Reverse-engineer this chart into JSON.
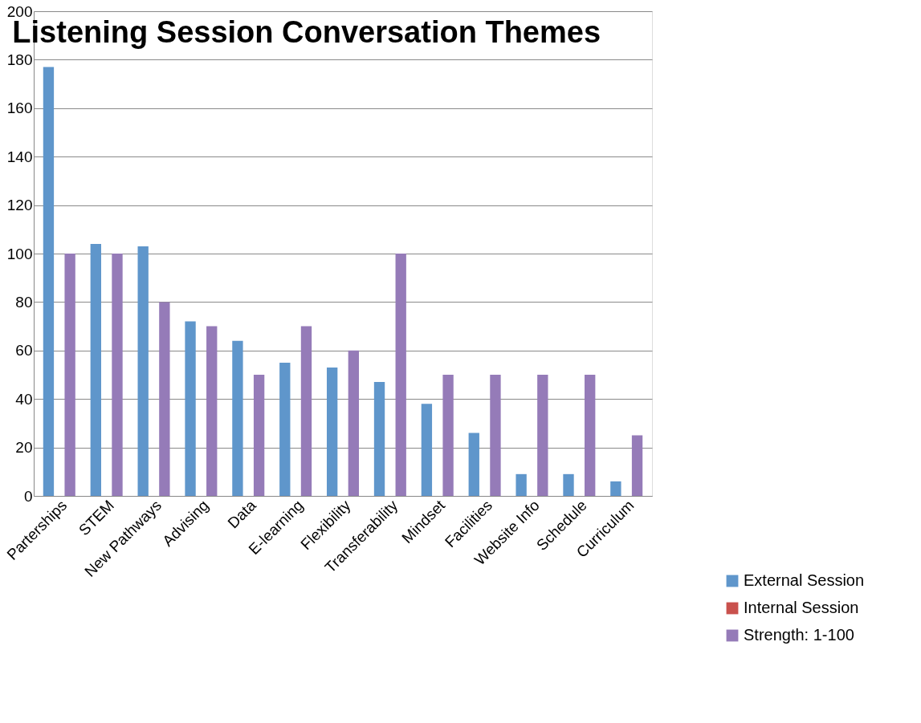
{
  "chart_data": {
    "type": "bar",
    "title": "Listening Session Conversation Themes",
    "categories": [
      "Parterships",
      "STEM",
      "New Pathways",
      "Advising",
      "Data",
      "E-learning",
      "Flexibility",
      "Transferability",
      "Mindset",
      "Facilities",
      "Website Info",
      "Schedule",
      "Curriculum"
    ],
    "series": [
      {
        "name": "External Session",
        "color": "#5f96cb",
        "values": [
          177,
          104,
          103,
          72,
          64,
          55,
          53,
          47,
          38,
          26,
          9,
          9,
          6
        ]
      },
      {
        "name": "Internal Session",
        "color": "#c9514d",
        "values": [
          null,
          null,
          null,
          null,
          null,
          null,
          null,
          null,
          null,
          null,
          null,
          null,
          null
        ]
      },
      {
        "name": "Strength: 1-100",
        "color": "#957bb8",
        "values": [
          100,
          100,
          80,
          70,
          50,
          70,
          60,
          100,
          50,
          50,
          50,
          50,
          25
        ]
      }
    ],
    "ylim": [
      0,
      200
    ],
    "yticks": [
      0,
      20,
      40,
      60,
      80,
      100,
      120,
      140,
      160,
      180,
      200
    ],
    "grid": "y",
    "legend": "bottom right"
  }
}
